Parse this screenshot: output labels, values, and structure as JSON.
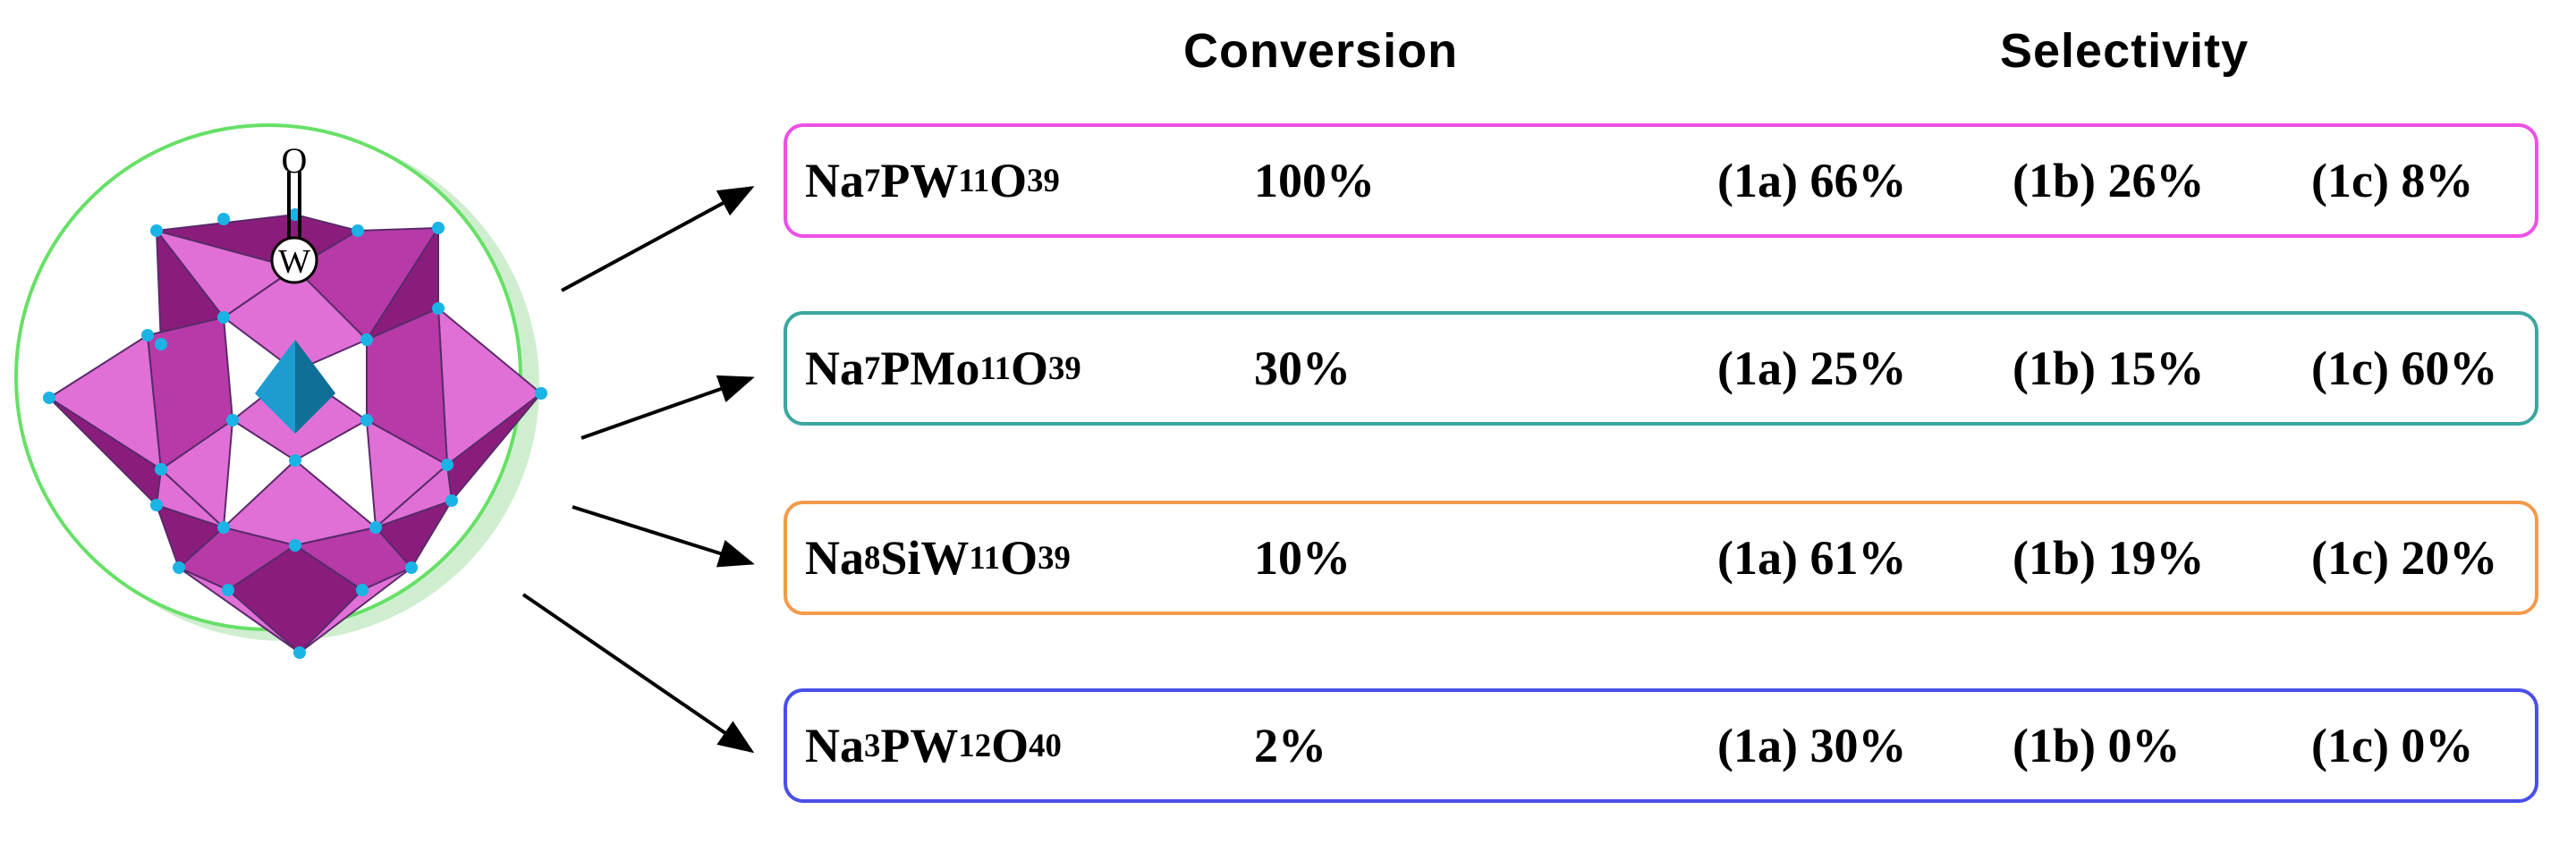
{
  "headers": {
    "conversion": "Conversion",
    "selectivity": "Selectivity"
  },
  "colors": {
    "circle": "#66e066",
    "circle_shadow": "#cfeecf",
    "polyhedra_dark": "#8a1d7c",
    "polyhedra_light": "#e070d6",
    "polyhedra_mid": "#b73aa8",
    "center_tetrahedron": "#1c9ccf",
    "atom": "#1ab3e6",
    "arrow": "#000000"
  },
  "structure": {
    "atom_top": "O",
    "atom_metal": "W"
  },
  "rows": [
    {
      "name_parts": [
        "Na",
        "7",
        "PW",
        "11",
        "O",
        "39"
      ],
      "conversion": "100%",
      "sel_a": "(1a) 66%",
      "sel_b": "(1b) 26%",
      "sel_c": "(1c) 8%",
      "border_color": "#ee4fe6"
    },
    {
      "name_parts": [
        "Na",
        "7",
        "PMo",
        "11",
        "O",
        "39"
      ],
      "conversion": "30%",
      "sel_a": "(1a) 25%",
      "sel_b": "(1b) 15%",
      "sel_c": "(1c) 60%",
      "border_color": "#3aa7a0"
    },
    {
      "name_parts": [
        "Na",
        "8",
        "SiW",
        "11",
        "O",
        "39"
      ],
      "conversion": "10%",
      "sel_a": "(1a) 61%",
      "sel_b": "(1b) 19%",
      "sel_c": "(1c) 20%",
      "border_color": "#f59a4a"
    },
    {
      "name_parts": [
        "Na",
        "3",
        "PW",
        "12",
        "O",
        "40"
      ],
      "conversion": "2%",
      "sel_a": "(1a) 30%",
      "sel_b": "(1b) 0%",
      "sel_c": "(1c) 0%",
      "border_color": "#4a4fe8"
    }
  ]
}
